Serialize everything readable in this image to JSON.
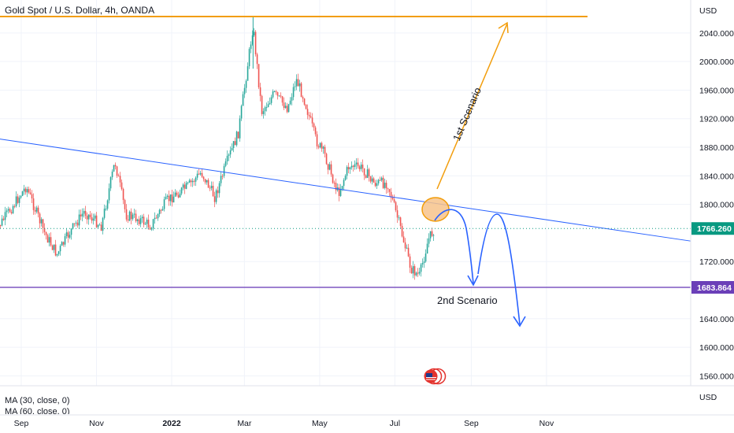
{
  "chart_data": {
    "type": "line",
    "title": "Gold Spot / U.S. Dollar, 4h, OANDA",
    "y_unit": "USD",
    "y_ticks": [
      "2040.000",
      "2000.000",
      "1960.000",
      "1920.000",
      "1880.000",
      "1840.000",
      "1800.000",
      "1720.000",
      "1640.000",
      "1600.000",
      "1560.000"
    ],
    "y_range": [
      1530,
      2063
    ],
    "x_ticks": [
      {
        "label": "Sep",
        "bold": false
      },
      {
        "label": "Nov",
        "bold": false
      },
      {
        "label": "2022",
        "bold": true
      },
      {
        "label": "Mar",
        "bold": false
      },
      {
        "label": "May",
        "bold": false
      },
      {
        "label": "Jul",
        "bold": false
      },
      {
        "label": "Sep",
        "bold": false
      },
      {
        "label": "Nov",
        "bold": false
      }
    ],
    "series": [
      {
        "x": [
          "2021-08-10",
          "2021-08-20",
          "2021-09-05",
          "2021-09-20",
          "2021-09-30",
          "2021-10-10",
          "2021-10-22",
          "2021-11-05",
          "2021-11-16",
          "2021-11-25",
          "2021-12-05",
          "2021-12-15",
          "2021-12-28",
          "2022-01-05",
          "2022-01-14",
          "2022-01-25",
          "2022-02-05",
          "2022-02-15",
          "2022-02-24",
          "2022-03-08",
          "2022-03-15",
          "2022-03-25",
          "2022-04-05",
          "2022-04-12",
          "2022-04-18",
          "2022-04-28",
          "2022-05-05",
          "2022-05-16",
          "2022-05-25",
          "2022-06-05",
          "2022-06-14",
          "2022-06-25",
          "2022-07-05",
          "2022-07-14",
          "2022-07-21",
          "2022-07-28",
          "2022-08-02"
        ],
        "values": [
          1760,
          1785,
          1825,
          1760,
          1730,
          1760,
          1790,
          1770,
          1860,
          1785,
          1780,
          1770,
          1805,
          1815,
          1825,
          1845,
          1810,
          1860,
          1900,
          2050,
          1930,
          1955,
          1935,
          1975,
          1950,
          1890,
          1870,
          1815,
          1855,
          1850,
          1830,
          1830,
          1770,
          1710,
          1700,
          1750,
          1766
        ]
      }
    ],
    "annotations": [
      {
        "kind": "hline",
        "y": 2063,
        "color": "#F29D0B"
      },
      {
        "kind": "hline",
        "y": 1683.864,
        "color": "#7E57C2",
        "label": "1683.864"
      },
      {
        "kind": "current",
        "y": 1766.26,
        "color": "#089981",
        "label": "1766.260"
      },
      {
        "kind": "trendline",
        "from": [
          "2021-07-20",
          1898
        ],
        "to": [
          "2022-12-20",
          1766
        ],
        "color": "#2962FF"
      },
      {
        "kind": "text",
        "text": "1st Scenario"
      },
      {
        "kind": "text",
        "text": "2nd Scenario"
      }
    ],
    "indicators": [
      "MA (30, close, 0)",
      "MA (60, close, 0)"
    ],
    "grid": true
  }
}
